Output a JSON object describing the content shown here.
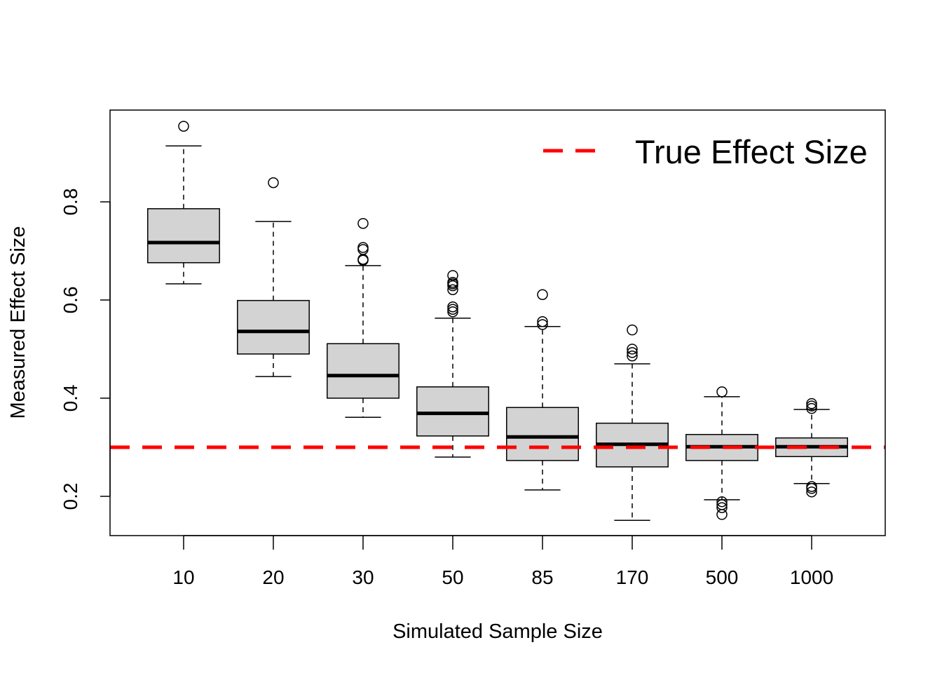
{
  "chart_data": {
    "type": "boxplot",
    "title": "",
    "xlabel": "Simulated Sample Size",
    "ylabel": "Measured Effect Size",
    "categories": [
      "10",
      "20",
      "30",
      "50",
      "85",
      "170",
      "500",
      "1000"
    ],
    "ylim": [
      0.12,
      0.987
    ],
    "yticks": [
      "0.2",
      "0.4",
      "0.6",
      "0.8"
    ],
    "grid": false,
    "box_fill": "#d3d3d3",
    "boxes": [
      {
        "whisker_low": 0.633,
        "q1": 0.676,
        "median": 0.717,
        "q3": 0.786,
        "whisker_high": 0.914,
        "outliers": [
          0.954
        ]
      },
      {
        "whisker_low": 0.444,
        "q1": 0.49,
        "median": 0.536,
        "q3": 0.599,
        "whisker_high": 0.76,
        "outliers": [
          0.839
        ]
      },
      {
        "whisker_low": 0.361,
        "q1": 0.4,
        "median": 0.446,
        "q3": 0.511,
        "whisker_high": 0.67,
        "outliers": [
          0.756,
          0.707,
          0.703,
          0.683,
          0.681
        ]
      },
      {
        "whisker_low": 0.28,
        "q1": 0.323,
        "median": 0.369,
        "q3": 0.423,
        "whisker_high": 0.563,
        "outliers": [
          0.65,
          0.636,
          0.633,
          0.629,
          0.621,
          0.586,
          0.581,
          0.576
        ]
      },
      {
        "whisker_low": 0.213,
        "q1": 0.273,
        "median": 0.321,
        "q3": 0.381,
        "whisker_high": 0.546,
        "outliers": [
          0.611,
          0.556,
          0.55
        ]
      },
      {
        "whisker_low": 0.151,
        "q1": 0.26,
        "median": 0.306,
        "q3": 0.349,
        "whisker_high": 0.47,
        "outliers": [
          0.539,
          0.5,
          0.493,
          0.486
        ]
      },
      {
        "whisker_low": 0.193,
        "q1": 0.273,
        "median": 0.301,
        "q3": 0.326,
        "whisker_high": 0.403,
        "outliers": [
          0.413,
          0.189,
          0.183,
          0.177,
          0.163
        ]
      },
      {
        "whisker_low": 0.226,
        "q1": 0.281,
        "median": 0.301,
        "q3": 0.319,
        "whisker_high": 0.377,
        "outliers": [
          0.389,
          0.384,
          0.379,
          0.22,
          0.216,
          0.209
        ]
      }
    ],
    "reference_line": {
      "value": 0.3,
      "color": "#ff0000",
      "style": "dashed",
      "name": "True Effect Size"
    },
    "legend": {
      "position": "top-right",
      "label": "True Effect Size"
    }
  }
}
